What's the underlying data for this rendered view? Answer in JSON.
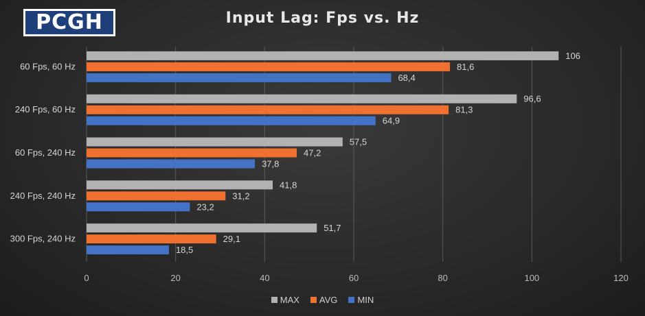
{
  "logo": {
    "text": "PCGH"
  },
  "chart_data": {
    "type": "bar",
    "orientation": "horizontal",
    "title": "Input Lag: Fps vs. Hz",
    "categories": [
      "60 Fps, 60 Hz",
      "240 Fps, 60 Hz",
      "60 Fps, 240 Hz",
      "240 Fps, 240 Hz",
      "300 Fps, 240 Hz"
    ],
    "series": [
      {
        "name": "MAX",
        "color": "#b2b2b2",
        "values": [
          106,
          96.6,
          57.5,
          41.8,
          51.7
        ],
        "labels": [
          "106",
          "96,6",
          "57,5",
          "41,8",
          "51,7"
        ]
      },
      {
        "name": "AVG",
        "color": "#f07030",
        "values": [
          81.6,
          81.3,
          47.2,
          31.2,
          29.1
        ],
        "labels": [
          "81,6",
          "81,3",
          "47,2",
          "31,2",
          "29,1"
        ]
      },
      {
        "name": "MIN",
        "color": "#4472c4",
        "values": [
          68.4,
          64.9,
          37.8,
          23.2,
          18.5
        ],
        "labels": [
          "68,4",
          "64,9",
          "37,8",
          "23,2",
          "18,5"
        ]
      }
    ],
    "xlim": [
      0,
      120
    ],
    "xticks": [
      0,
      20,
      40,
      60,
      80,
      100,
      120
    ],
    "grid": true,
    "legend": "bottom"
  }
}
